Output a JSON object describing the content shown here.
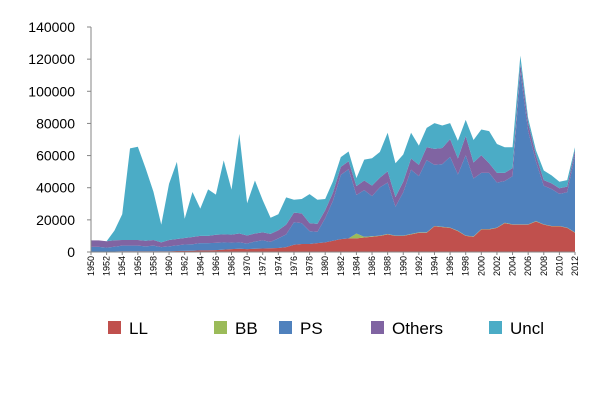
{
  "chart_data": {
    "type": "area",
    "stacked": true,
    "title": "",
    "xlabel": "",
    "ylabel": "",
    "ylim": [
      0,
      140000
    ],
    "yticks": [
      0,
      20000,
      40000,
      60000,
      80000,
      100000,
      120000,
      140000
    ],
    "xticks": [
      "1950",
      "1952",
      "1954",
      "1956",
      "1958",
      "1960",
      "1962",
      "1964",
      "1966",
      "1968",
      "1970",
      "1972",
      "1974",
      "1976",
      "1978",
      "1980",
      "1982",
      "1984",
      "1986",
      "1988",
      "1990",
      "1992",
      "1994",
      "1996",
      "1998",
      "2000",
      "2002",
      "2004",
      "2006",
      "2008",
      "2010",
      "2012"
    ],
    "grid": false,
    "legend_position": "bottom",
    "x": [
      1950,
      1951,
      1952,
      1953,
      1954,
      1955,
      1956,
      1957,
      1958,
      1959,
      1960,
      1961,
      1962,
      1963,
      1964,
      1965,
      1966,
      1967,
      1968,
      1969,
      1970,
      1971,
      1972,
      1973,
      1974,
      1975,
      1976,
      1977,
      1978,
      1979,
      1980,
      1981,
      1982,
      1983,
      1984,
      1985,
      1986,
      1987,
      1988,
      1989,
      1990,
      1991,
      1992,
      1993,
      1994,
      1995,
      1996,
      1997,
      1998,
      1999,
      2000,
      2001,
      2002,
      2003,
      2004,
      2005,
      2006,
      2007,
      2008,
      2009,
      2010,
      2011,
      2012
    ],
    "series": [
      {
        "name": "LL",
        "color": "#c0504d",
        "values": [
          200,
          200,
          200,
          300,
          500,
          500,
          500,
          500,
          500,
          500,
          500,
          600,
          700,
          800,
          1000,
          1000,
          1200,
          1500,
          1800,
          2000,
          1800,
          2000,
          2200,
          2300,
          2500,
          3000,
          4500,
          5000,
          5000,
          5500,
          6000,
          7000,
          8000,
          8500,
          8500,
          9000,
          9500,
          10000,
          11000,
          10000,
          10000,
          11000,
          12000,
          12000,
          16000,
          15500,
          15000,
          13000,
          10000,
          9500,
          14000,
          14000,
          15000,
          18000,
          17000,
          17000,
          17000,
          19000,
          17000,
          16000,
          16000,
          15000,
          12000
        ]
      },
      {
        "name": "BB",
        "color": "#9bbb59",
        "values": [
          0,
          0,
          0,
          0,
          0,
          0,
          0,
          0,
          0,
          0,
          0,
          0,
          0,
          0,
          0,
          0,
          0,
          0,
          0,
          0,
          0,
          0,
          0,
          0,
          0,
          0,
          0,
          0,
          0,
          0,
          0,
          0,
          0,
          0,
          3000,
          500,
          300,
          200,
          200,
          200,
          200,
          200,
          200,
          200,
          200,
          200,
          200,
          200,
          200,
          200,
          200,
          200,
          200,
          200,
          200,
          200,
          200,
          200,
          200,
          200,
          200,
          200,
          200
        ]
      },
      {
        "name": "PS",
        "color": "#4f81bd",
        "values": [
          3000,
          3000,
          2500,
          3000,
          3500,
          3500,
          3500,
          3000,
          3500,
          2500,
          3000,
          3500,
          4000,
          4000,
          4500,
          4500,
          4500,
          4500,
          4000,
          4000,
          3500,
          4500,
          5000,
          4000,
          6000,
          8000,
          14000,
          13000,
          8000,
          7000,
          15000,
          25000,
          40000,
          43000,
          24000,
          29000,
          25000,
          30000,
          32000,
          18000,
          27000,
          40000,
          35000,
          45000,
          38000,
          39000,
          44000,
          35000,
          50000,
          36000,
          35000,
          35000,
          28000,
          26000,
          30000,
          95000,
          58000,
          37000,
          24000,
          23000,
          20000,
          22000,
          48000
        ]
      },
      {
        "name": "Others",
        "color": "#8064a2",
        "values": [
          4000,
          4000,
          4000,
          4000,
          3500,
          3500,
          3500,
          3500,
          3500,
          3000,
          4000,
          4000,
          4000,
          4500,
          4500,
          4500,
          5000,
          5000,
          5000,
          5500,
          5000,
          5000,
          5000,
          5000,
          5000,
          6000,
          6000,
          6000,
          5000,
          5000,
          5000,
          5000,
          5000,
          5000,
          5500,
          6000,
          6500,
          6000,
          7000,
          6000,
          6500,
          7000,
          7000,
          8000,
          10000,
          10000,
          11000,
          10000,
          12000,
          10000,
          11000,
          6000,
          6000,
          5000,
          5000,
          5000,
          5000,
          4000,
          3500,
          3500,
          3500,
          3500,
          3000
        ]
      },
      {
        "name": "Uncl",
        "color": "#4bacc6",
        "values": [
          0,
          0,
          0,
          6000,
          16000,
          57000,
          58000,
          45000,
          30000,
          11000,
          35000,
          48000,
          12000,
          28000,
          17000,
          29000,
          25000,
          46000,
          28000,
          62000,
          20000,
          33000,
          20000,
          10000,
          10000,
          17000,
          8000,
          9000,
          18000,
          15000,
          7000,
          7000,
          6000,
          6000,
          5000,
          13000,
          17000,
          16000,
          24000,
          21000,
          17000,
          16000,
          12000,
          12000,
          16000,
          14000,
          10000,
          11000,
          10000,
          14000,
          16000,
          20000,
          18000,
          16000,
          13000,
          5000,
          3000,
          3000,
          6000,
          5000,
          4000,
          4000,
          2000
        ]
      }
    ]
  }
}
